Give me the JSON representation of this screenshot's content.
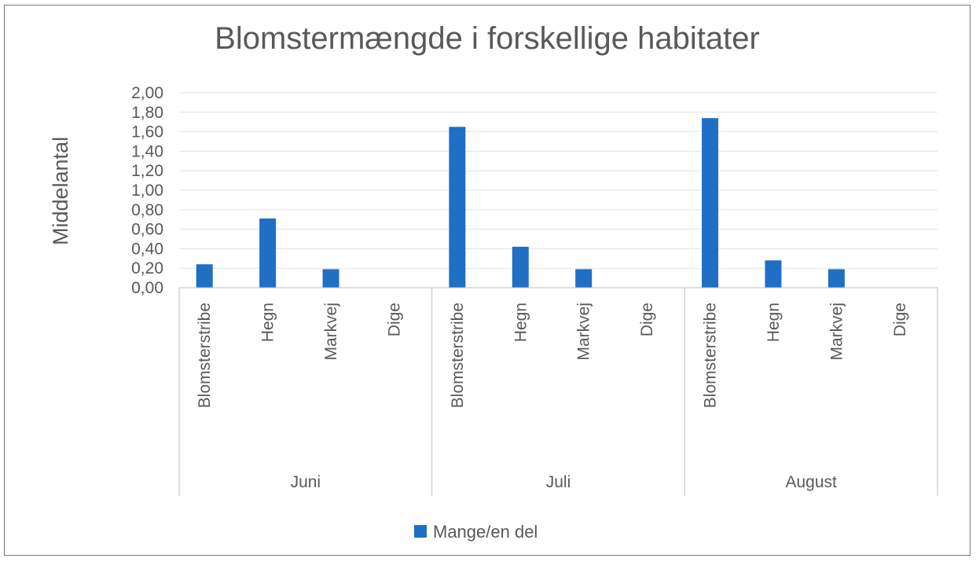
{
  "chart_data": {
    "type": "bar",
    "title": "Blomstermængde i forskellige habitater",
    "ylabel": "Middelantal",
    "xlabel": "",
    "ylim": [
      0,
      2.0
    ],
    "yticks": [
      "0,00",
      "0,20",
      "0,40",
      "0,60",
      "0,80",
      "1,00",
      "1,20",
      "1,40",
      "1,60",
      "1,80",
      "2,00"
    ],
    "grid": true,
    "legend_position": "bottom",
    "groups": [
      {
        "label": "Juni",
        "categories": [
          "Blomsterstribe",
          "Hegn",
          "Markvej",
          "Dige"
        ],
        "values": [
          0.24,
          0.71,
          0.19,
          0
        ]
      },
      {
        "label": "Juli",
        "categories": [
          "Blomsterstribe",
          "Hegn",
          "Markvej",
          "Dige"
        ],
        "values": [
          1.65,
          0.42,
          0.19,
          0
        ]
      },
      {
        "label": "August",
        "categories": [
          "Blomsterstribe",
          "Hegn",
          "Markvej",
          "Dige"
        ],
        "values": [
          1.74,
          0.28,
          0.19,
          0
        ]
      }
    ],
    "series": [
      {
        "name": "Mange/en del",
        "color": "#1f6fc5"
      }
    ]
  }
}
